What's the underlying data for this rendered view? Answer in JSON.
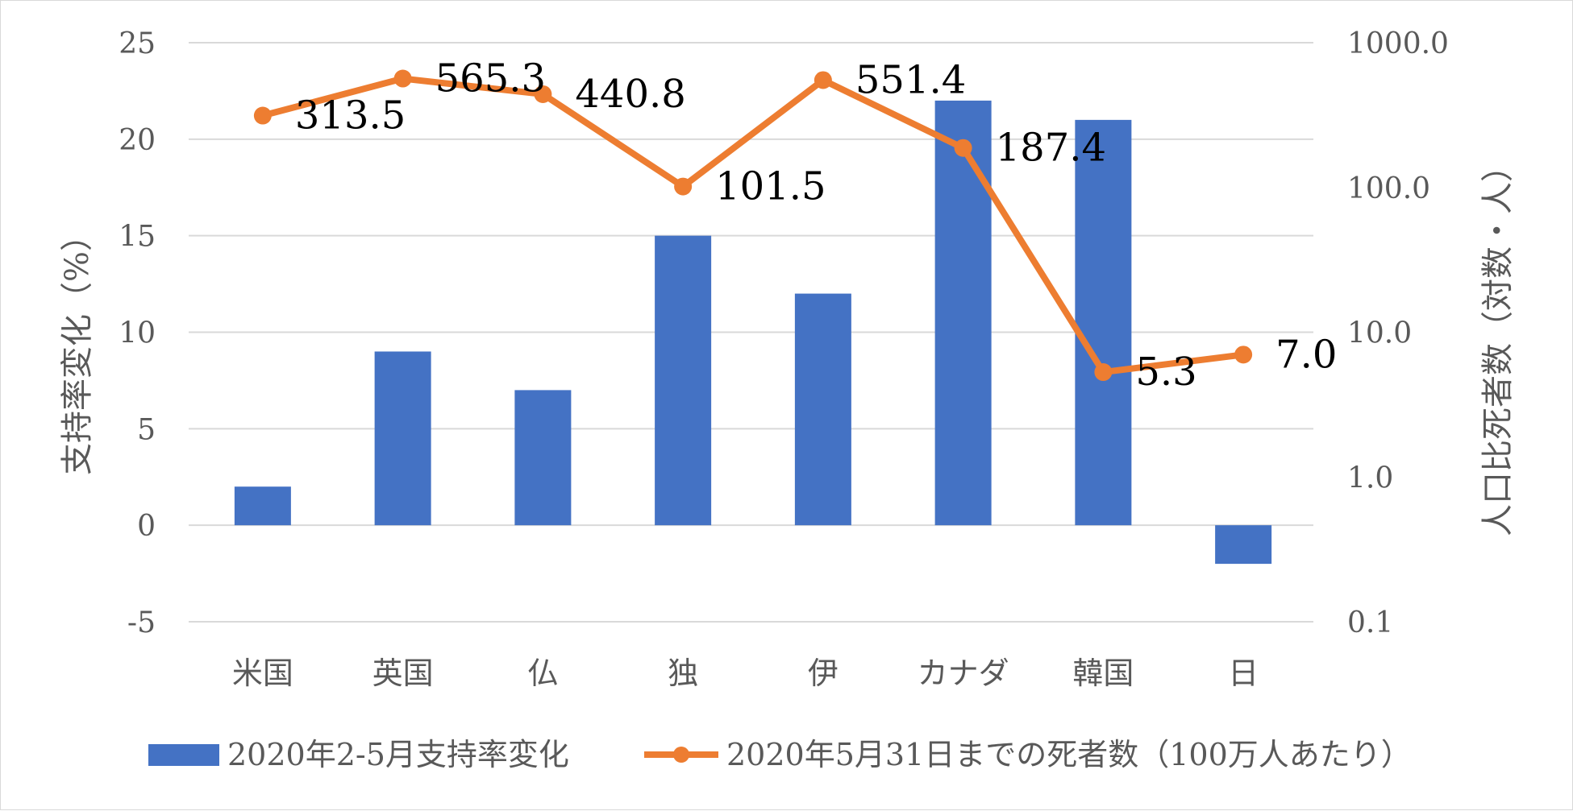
{
  "chart_data": {
    "type": "bar",
    "categories": [
      "米国",
      "英国",
      "仏",
      "独",
      "伊",
      "カナダ",
      "韓国",
      "日"
    ],
    "series": [
      {
        "name": "2020年2-5月支持率変化",
        "type": "bar",
        "axis": "left",
        "color": "#4472c4",
        "values": [
          2,
          9,
          7,
          15,
          12,
          22,
          21,
          -2
        ]
      },
      {
        "name": "2020年5月31日までの死者数（100万人あたり）",
        "type": "line",
        "axis": "right",
        "scale": "log",
        "color": "#ed7d31",
        "values": [
          313.5,
          565.3,
          440.8,
          101.5,
          551.4,
          187.4,
          5.3,
          7.0
        ],
        "labels": [
          "313.5",
          "565.3",
          "440.8",
          "101.5",
          "551.4",
          "187.4",
          "5.3",
          "7.0"
        ]
      }
    ],
    "y_left": {
      "label": "支持率変化（%）",
      "ylim": [
        -5,
        25
      ],
      "ticks": [
        "-5",
        "0",
        "5",
        "10",
        "15",
        "20",
        "25"
      ]
    },
    "y_right": {
      "label": "人口比死者数（対数・人）",
      "scale": "log",
      "ylim": [
        0.1,
        1000
      ],
      "ticks": [
        "0.1",
        "1.0",
        "10.0",
        "100.0",
        "1000.0"
      ]
    },
    "grid": true,
    "legend_position": "bottom"
  }
}
